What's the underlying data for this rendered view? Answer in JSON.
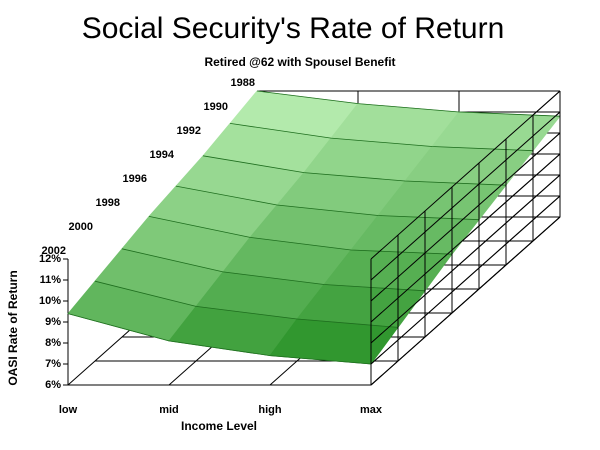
{
  "chart_data": {
    "type": "surface",
    "title": "Social Security's Rate of Return",
    "subtitle": "Retired @62 with Spousel Benefit",
    "x_label": "Income Level",
    "z_label": "OASI Rate of Return",
    "categories": [
      "low",
      "mid",
      "high",
      "max"
    ],
    "series": [
      {
        "name": "1988",
        "values": [
          12.0,
          11.4,
          11.0,
          10.8
        ]
      },
      {
        "name": "1990",
        "values": [
          11.6,
          10.9,
          10.5,
          10.3
        ]
      },
      {
        "name": "1992",
        "values": [
          11.2,
          10.4,
          10.0,
          9.8
        ]
      },
      {
        "name": "1994",
        "values": [
          10.9,
          10.0,
          9.5,
          9.3
        ]
      },
      {
        "name": "1996",
        "values": [
          10.6,
          9.6,
          9.0,
          8.8
        ]
      },
      {
        "name": "1998",
        "values": [
          10.2,
          9.1,
          8.5,
          8.2
        ]
      },
      {
        "name": "2000",
        "values": [
          9.8,
          8.6,
          8.0,
          7.6
        ]
      },
      {
        "name": "2002",
        "values": [
          9.4,
          8.1,
          7.4,
          7.0
        ]
      }
    ],
    "zlim": [
      6,
      12
    ],
    "zticks": [
      {
        "value": 6,
        "label": "6%"
      },
      {
        "value": 7,
        "label": "7%"
      },
      {
        "value": 8,
        "label": "8%"
      },
      {
        "value": 9,
        "label": "9%"
      },
      {
        "value": 10,
        "label": "10%"
      },
      {
        "value": 11,
        "label": "11%"
      },
      {
        "value": 12,
        "label": "12%"
      }
    ],
    "grid": true,
    "color_high": "#c4f5bc",
    "color_low": "#007800"
  }
}
